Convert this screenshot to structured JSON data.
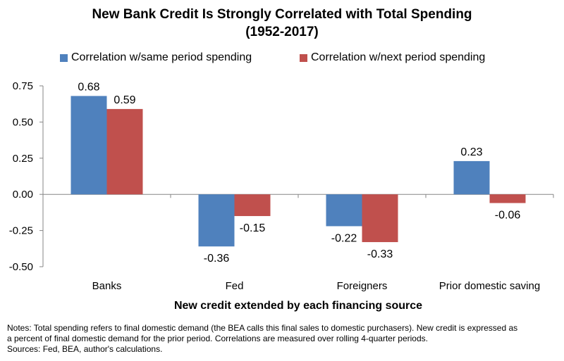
{
  "chart_data": {
    "type": "bar",
    "title_lines": [
      "New Bank Credit Is Strongly Correlated with Total Spending",
      "(1952-2017)"
    ],
    "xlabel": "New credit extended by each financing source",
    "ylabel": "",
    "categories": [
      "Banks",
      "Fed",
      "Foreigners",
      "Prior domestic saving"
    ],
    "series": [
      {
        "name": "Correlation w/same period spending",
        "color": "#4f81bd",
        "values": [
          0.68,
          -0.36,
          -0.22,
          0.23
        ],
        "labels": [
          "0.68",
          "-0.36",
          "-0.22",
          "0.23"
        ]
      },
      {
        "name": "Correlation w/next period spending",
        "color": "#c0504d",
        "values": [
          0.59,
          -0.15,
          -0.33,
          -0.06
        ],
        "labels": [
          "0.59",
          "-0.15",
          "-0.33",
          "-0.06"
        ]
      }
    ],
    "ylim": [
      -0.5,
      0.75
    ],
    "yticks": [
      0.75,
      0.5,
      0.25,
      0.0,
      -0.25,
      -0.5
    ],
    "ytick_labels": [
      "0.75",
      "0.50",
      "0.25",
      "0.00",
      "-0.25",
      "-0.50"
    ],
    "grid": false,
    "legend_position": "top"
  },
  "notes": {
    "line1": "Notes: Total spending refers to final domestic demand (the BEA calls this final sales to domestic purchasers). New credit is expressed as",
    "line2": "a percent of final domestic demand for the prior period. Correlations are measured over rolling 4-quarter periods.",
    "line3": "Sources: Fed, BEA, author's calculations."
  }
}
